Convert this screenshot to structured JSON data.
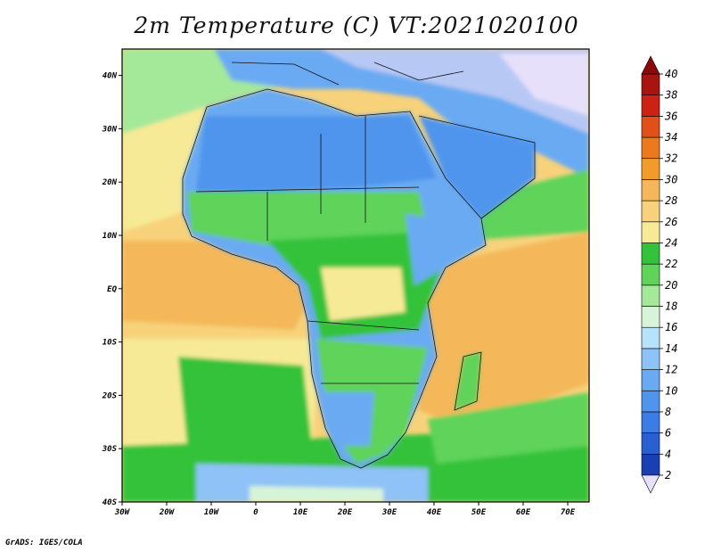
{
  "chart_data": {
    "type": "heatmap",
    "title": "2m Temperature (C) VT:2021020100",
    "units": "C",
    "x_axis": {
      "tick_labels": [
        "30W",
        "20W",
        "10W",
        "0",
        "10E",
        "20E",
        "30E",
        "40E",
        "50E",
        "60E",
        "70E"
      ],
      "range_lon": [
        -30,
        75
      ]
    },
    "y_axis": {
      "tick_labels": [
        "40S",
        "30S",
        "20S",
        "10S",
        "EQ",
        "10N",
        "20N",
        "30N",
        "40N"
      ],
      "range_lat": [
        -40,
        45
      ]
    },
    "colorbar": {
      "levels": [
        2,
        4,
        6,
        8,
        10,
        12,
        14,
        16,
        18,
        20,
        22,
        24,
        26,
        28,
        30,
        32,
        34,
        36,
        38,
        40
      ],
      "colors": [
        "#0a1a78",
        "#1a3fb4",
        "#2a5fd4",
        "#3c7ce6",
        "#4f95ee",
        "#6aaaf2",
        "#8fc2f6",
        "#b6e2fb",
        "#d8f4d8",
        "#a4e89a",
        "#5fd35a",
        "#34c23a",
        "#f7ea96",
        "#f7d27a",
        "#f4b85a",
        "#f29a2a",
        "#ec7a1c",
        "#e2501a",
        "#cc2216",
        "#a81410",
        "#8a0a0a"
      ],
      "under_color": "#e6e0fb",
      "over_color": "#8a0a0a"
    }
  },
  "credit": "GrADS: IGES/COLA"
}
